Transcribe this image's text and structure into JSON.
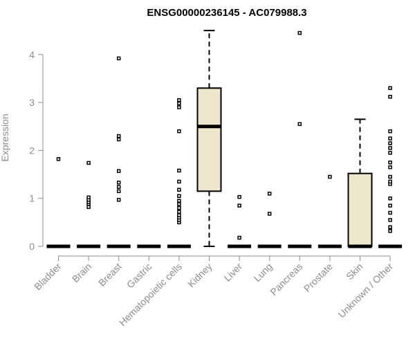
{
  "chart_data": {
    "type": "box",
    "title": "ENSG00000236145 - AC079988.3",
    "xlabel": "",
    "ylabel": "Expression",
    "ylim": [
      0,
      4.5
    ],
    "yticks": [
      0,
      1,
      2,
      3,
      4
    ],
    "grid": false,
    "colors": {
      "box_fill": "#ede6cc",
      "stroke": "#000000",
      "axis_text": "#8c8c8c"
    },
    "categories": [
      "Bladder",
      "Brain",
      "Breast",
      "Gastric",
      "Hematopoietic cells",
      "Kidney",
      "Liver",
      "Lung",
      "Pancreas",
      "Prostate",
      "Skin",
      "Unknown / Other"
    ],
    "boxes": [
      {
        "category": "Bladder",
        "min": 0,
        "q1": 0,
        "median": 0,
        "q3": 0,
        "max": 0,
        "outliers": [
          1.82
        ]
      },
      {
        "category": "Brain",
        "min": 0,
        "q1": 0,
        "median": 0,
        "q3": 0,
        "max": 0,
        "outliers": [
          0.82,
          0.88,
          0.92,
          0.97,
          1.02,
          1.74
        ]
      },
      {
        "category": "Breast",
        "min": 0,
        "q1": 0,
        "median": 0,
        "q3": 0,
        "max": 0,
        "outliers": [
          0.97,
          1.15,
          1.24,
          1.33,
          1.57,
          2.23,
          2.3,
          3.92
        ]
      },
      {
        "category": "Gastric",
        "min": 0,
        "q1": 0,
        "median": 0,
        "q3": 0,
        "max": 0,
        "outliers": []
      },
      {
        "category": "Hematopoietic cells",
        "min": 0,
        "q1": 0,
        "median": 0,
        "q3": 0,
        "max": 0,
        "outliers": [
          0.5,
          0.55,
          0.6,
          0.65,
          0.72,
          0.8,
          0.88,
          0.95,
          1.05,
          1.18,
          1.35,
          1.58,
          2.4,
          2.9,
          2.98,
          3.05
        ]
      },
      {
        "category": "Kidney",
        "min": 0,
        "q1": 1.15,
        "median": 2.5,
        "q3": 3.3,
        "max": 4.5,
        "outliers": []
      },
      {
        "category": "Liver",
        "min": 0,
        "q1": 0,
        "median": 0,
        "q3": 0,
        "max": 0,
        "outliers": [
          0.18,
          0.85,
          1.03
        ]
      },
      {
        "category": "Lung",
        "min": 0,
        "q1": 0,
        "median": 0,
        "q3": 0,
        "max": 0,
        "outliers": [
          0.68,
          1.1
        ]
      },
      {
        "category": "Pancreas",
        "min": 0,
        "q1": 0,
        "median": 0,
        "q3": 0,
        "max": 0,
        "outliers": [
          2.55,
          4.45
        ]
      },
      {
        "category": "Prostate",
        "min": 0,
        "q1": 0,
        "median": 0,
        "q3": 0,
        "max": 0,
        "outliers": [
          1.45
        ]
      },
      {
        "category": "Skin",
        "min": 0,
        "q1": 0,
        "median": 0,
        "q3": 1.52,
        "max": 2.65,
        "outliers": []
      },
      {
        "category": "Unknown / Other",
        "min": 0,
        "q1": 0,
        "median": 0,
        "q3": 0,
        "max": 0,
        "outliers": [
          0.32,
          0.4,
          0.55,
          0.7,
          0.85,
          1.0,
          1.3,
          1.35,
          1.45,
          1.65,
          1.75,
          1.95,
          2.05,
          2.15,
          2.25,
          2.4,
          3.12,
          3.3
        ]
      }
    ]
  }
}
